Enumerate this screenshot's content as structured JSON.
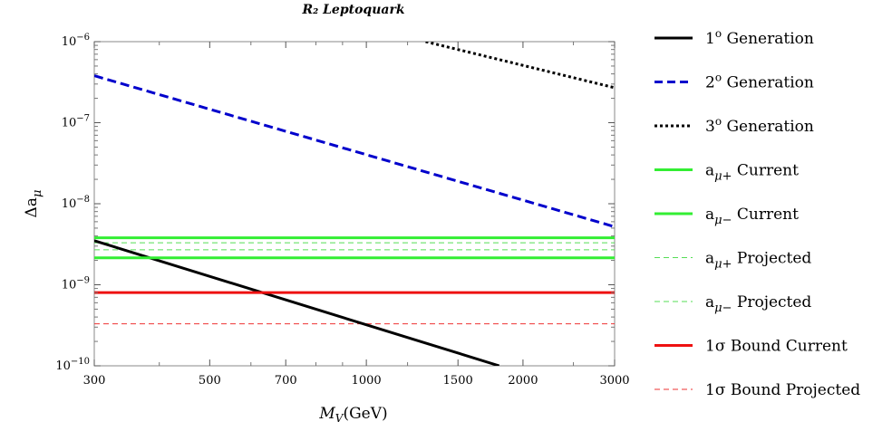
{
  "chart_data": {
    "type": "line",
    "title": "R₂ Leptoquark",
    "xlabel": "M_V(GeV)",
    "ylabel": "Δa_μ",
    "x_scale": "log",
    "y_scale": "log",
    "xlim": [
      300,
      3000
    ],
    "ylim": [
      1e-10,
      1e-06
    ],
    "x_ticks": [
      300,
      500,
      700,
      1000,
      1500,
      2000,
      3000
    ],
    "x_tick_labels": [
      "300",
      "500",
      "700",
      "1000",
      "1500",
      "2000",
      "3000"
    ],
    "y_ticks": [
      1e-10,
      1e-09,
      1e-08,
      1e-07,
      1e-06
    ],
    "y_tick_labels": [
      {
        "base": "10",
        "exp": "−10"
      },
      {
        "base": "10",
        "exp": "−9"
      },
      {
        "base": "10",
        "exp": "−8"
      },
      {
        "base": "10",
        "exp": "−7"
      },
      {
        "base": "10",
        "exp": "−6"
      }
    ],
    "grid": false,
    "legend_position": "right",
    "series": [
      {
        "name": "1° Generation",
        "label_main": "1",
        "label_sup": "o",
        "label_rest": " Generation",
        "color": "#000000",
        "style": "solid",
        "width": 3,
        "x": [
          300,
          1800
        ],
        "y": [
          3.5e-09,
          1e-10
        ]
      },
      {
        "name": "2° Generation",
        "label_main": "2",
        "label_sup": "o",
        "label_rest": " Generation",
        "color": "#0000cc",
        "style": "dashed",
        "width": 3,
        "x": [
          300,
          3000
        ],
        "y": [
          3.8e-07,
          5.2e-09
        ]
      },
      {
        "name": "3° Generation",
        "label_main": "3",
        "label_sup": "o",
        "label_rest": " Generation",
        "color": "#000000",
        "style": "dotted",
        "width": 3,
        "x": [
          1300,
          3000
        ],
        "y": [
          1e-06,
          2.7e-07
        ]
      },
      {
        "name": "aμ+ Current",
        "label_main": "a",
        "label_sub": "μ+",
        "label_rest": " Current",
        "color": "#33ee33",
        "style": "solid",
        "width": 3,
        "x": [
          300,
          3000
        ],
        "y": [
          3.8e-09,
          3.8e-09
        ]
      },
      {
        "name": "aμ− Current",
        "label_main": "a",
        "label_sub": "μ−",
        "label_rest": " Current",
        "color": "#33ee33",
        "style": "solid",
        "width": 3,
        "x": [
          300,
          3000
        ],
        "y": [
          2.15e-09,
          2.15e-09
        ]
      },
      {
        "name": "aμ+ Projected",
        "label_main": "a",
        "label_sub": "μ+",
        "label_rest": " Projected",
        "color": "#55dd55",
        "style": "thin-dashed",
        "width": 1,
        "x": [
          300,
          3000
        ],
        "y": [
          3.3e-09,
          3.3e-09
        ]
      },
      {
        "name": "aμ− Projected",
        "label_main": "a",
        "label_sub": "μ−",
        "label_rest": " Projected",
        "color": "#55dd55",
        "style": "thin-dashed",
        "width": 1,
        "x": [
          300,
          3000
        ],
        "y": [
          2.7e-09,
          2.7e-09
        ]
      },
      {
        "name": "1σ Bound Current",
        "label_main": "1σ",
        "label_rest": " Bound Current",
        "color": "#ee1111",
        "style": "solid",
        "width": 3,
        "x": [
          300,
          3000
        ],
        "y": [
          8e-10,
          8e-10
        ]
      },
      {
        "name": "1σ Bound Projected",
        "label_main": "1σ",
        "label_rest": " Bound Projected",
        "color": "#ee3333",
        "style": "thin-dashed",
        "width": 1,
        "x": [
          300,
          3000
        ],
        "y": [
          3.3e-10,
          3.3e-10
        ]
      }
    ]
  }
}
